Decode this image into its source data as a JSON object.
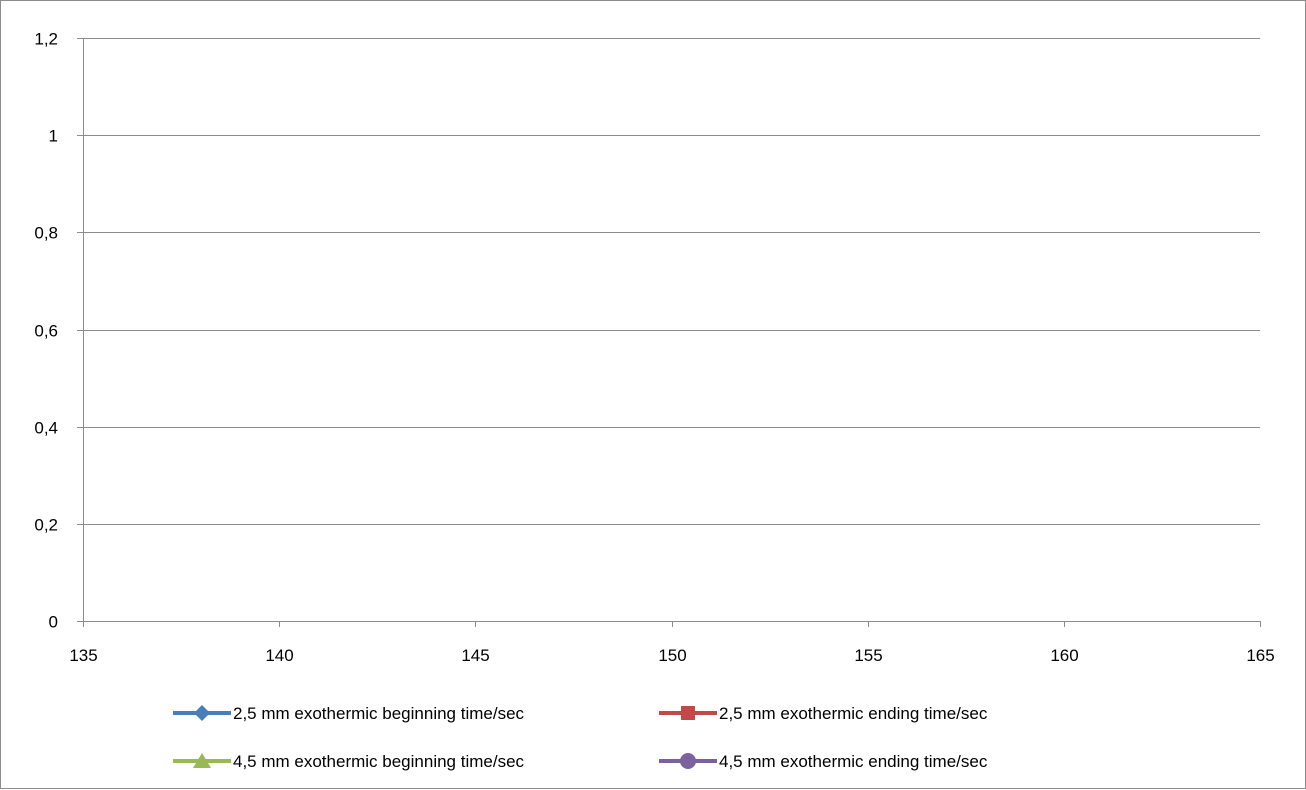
{
  "chart_data": {
    "type": "line",
    "title": "",
    "xlabel": "",
    "ylabel": "",
    "xlim": [
      135,
      165
    ],
    "ylim": [
      0,
      1.2
    ],
    "x_ticks": [
      135,
      140,
      145,
      150,
      155,
      160,
      165
    ],
    "x_tick_labels": [
      "135",
      "140",
      "145",
      "150",
      "155",
      "160",
      "165"
    ],
    "y_ticks": [
      0,
      0.2,
      0.4,
      0.6,
      0.8,
      1,
      1.2
    ],
    "y_tick_labels": [
      "0",
      "0,2",
      "0,4",
      "0,6",
      "0,8",
      "1",
      "1,2"
    ],
    "grid": "horizontal",
    "legend_position": "bottom",
    "series": [
      {
        "name": "2,5 mm exothermic beginning time/sec",
        "color": "#4a7ebb",
        "marker": "diamond",
        "points": []
      },
      {
        "name": "2,5 mm exothermic ending time/sec",
        "color": "#be4b48",
        "marker": "square",
        "points": []
      },
      {
        "name": "4,5 mm exothermic beginning time/sec",
        "color": "#98b954",
        "marker": "triangle",
        "points": []
      },
      {
        "name": "4,5 mm exothermic ending time/sec",
        "color": "#7d60a0",
        "marker": "circle",
        "points": []
      }
    ]
  }
}
